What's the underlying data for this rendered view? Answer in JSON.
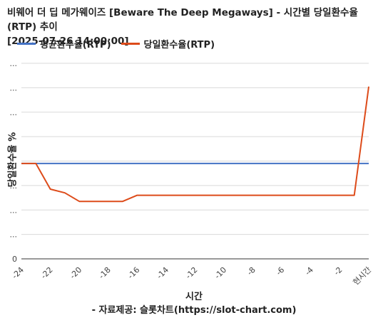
{
  "chart_data": {
    "type": "line",
    "title": "비웨어 더 딥 메가웨이즈 [Beware The Deep Megaways] - 시간별 당일환수율(RTP) 추이",
    "subtitle": "[2025-07-26 14:00:00]",
    "xlabel": "시간",
    "ylabel": "당일환수율 %",
    "source": "- 자료제공: 슬롯차트(https://slot-chart.com)",
    "x": [
      -24,
      -23,
      -22,
      -21,
      -20,
      -19,
      -18,
      -17,
      -16,
      -15,
      -14,
      -13,
      -12,
      -11,
      -10,
      -9,
      -8,
      -7,
      -6,
      -5,
      -4,
      -3,
      -2,
      -1,
      0
    ],
    "xticks": [
      {
        "value": -24,
        "label": "-24"
      },
      {
        "value": -22,
        "label": "-22"
      },
      {
        "value": -20,
        "label": "-20"
      },
      {
        "value": -18,
        "label": "-18"
      },
      {
        "value": -16,
        "label": "-16"
      },
      {
        "value": -14,
        "label": "-14"
      },
      {
        "value": -12,
        "label": "-12"
      },
      {
        "value": -10,
        "label": "-10"
      },
      {
        "value": -8,
        "label": "-8"
      },
      {
        "value": -6,
        "label": "-6"
      },
      {
        "value": -4,
        "label": "-4"
      },
      {
        "value": -2,
        "label": "-2"
      },
      {
        "value": 0,
        "label": "현시간"
      }
    ],
    "yticks": [
      {
        "value": 0,
        "label": "0"
      },
      {
        "value": 20,
        "label": "..."
      },
      {
        "value": 40,
        "label": "..."
      },
      {
        "value": 60,
        "label": "..."
      },
      {
        "value": 80,
        "label": "..."
      },
      {
        "value": 100,
        "label": "..."
      },
      {
        "value": 120,
        "label": "..."
      },
      {
        "value": 140,
        "label": "..."
      },
      {
        "value": 160,
        "label": "..."
      }
    ],
    "ylim": [
      0,
      160
    ],
    "xlim": [
      -24,
      0
    ],
    "grid": true,
    "legend_position": "top-left",
    "series": [
      {
        "name": "평균환수율(RTP)",
        "color": "#4472c4",
        "values": [
          78,
          78,
          78,
          78,
          78,
          78,
          78,
          78,
          78,
          78,
          78,
          78,
          78,
          78,
          78,
          78,
          78,
          78,
          78,
          78,
          78,
          78,
          78,
          78,
          78
        ]
      },
      {
        "name": "당일환수율(RTP)",
        "color": "#dd4b1a",
        "values": [
          78,
          78,
          57,
          54,
          47,
          47,
          47,
          47,
          52,
          52,
          52,
          52,
          52,
          52,
          52,
          52,
          52,
          52,
          52,
          52,
          52,
          52,
          52,
          52,
          141
        ]
      }
    ]
  }
}
